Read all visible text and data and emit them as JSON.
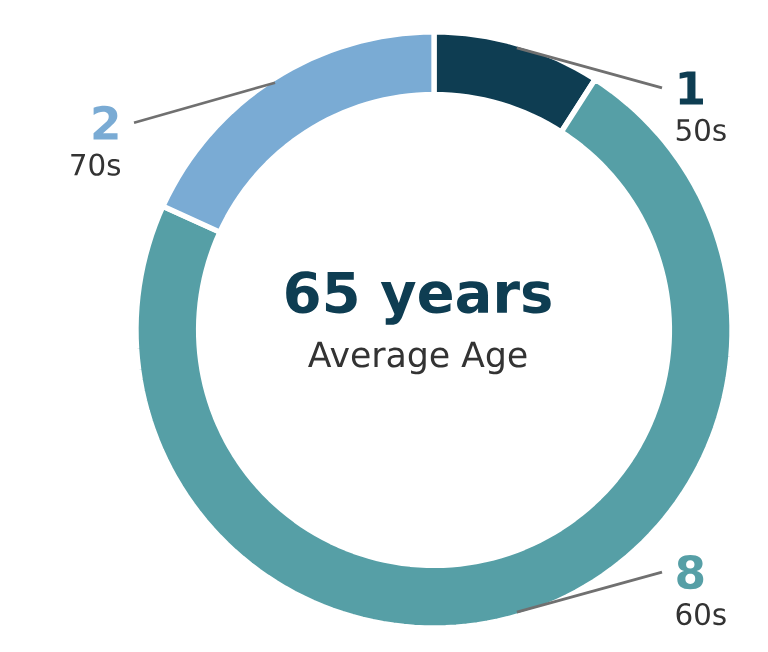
{
  "chart_data": {
    "type": "donut",
    "categories": [
      "50s",
      "60s",
      "70s"
    ],
    "values": [
      1,
      8,
      2
    ],
    "colors": [
      "#0e3d52",
      "#569fa6",
      "#7aabd4"
    ],
    "data_labels": true,
    "annotations": [
      "65 years",
      "Average Age"
    ]
  }
}
